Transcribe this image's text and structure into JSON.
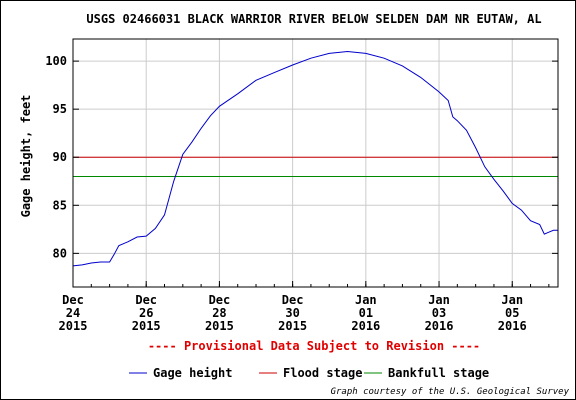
{
  "chart_data": {
    "type": "line",
    "title": "USGS 02466031 BLACK WARRIOR RIVER BELOW SELDEN DAM NR EUTAW, AL",
    "ylabel": "Gage height, feet",
    "ylim": [
      76.5,
      102.3
    ],
    "xlim": [
      "2015-12-24T00:00",
      "2016-01-06T06:00"
    ],
    "yticks": [
      80,
      85,
      90,
      95,
      100
    ],
    "xticks": [
      {
        "date": "2015-12-24",
        "lines": [
          "Dec",
          "24",
          "2015"
        ]
      },
      {
        "date": "2015-12-26",
        "lines": [
          "Dec",
          "26",
          "2015"
        ]
      },
      {
        "date": "2015-12-28",
        "lines": [
          "Dec",
          "28",
          "2015"
        ]
      },
      {
        "date": "2015-12-30",
        "lines": [
          "Dec",
          "30",
          "2015"
        ]
      },
      {
        "date": "2016-01-01",
        "lines": [
          "Jan",
          "01",
          "2016"
        ]
      },
      {
        "date": "2016-01-03",
        "lines": [
          "Jan",
          "03",
          "2016"
        ]
      },
      {
        "date": "2016-01-05",
        "lines": [
          "Jan",
          "05",
          "2016"
        ]
      }
    ],
    "grid": true,
    "series": [
      {
        "name": "Gage height",
        "color": "#0000cc",
        "points": [
          [
            "2015-12-24T00:00",
            78.7
          ],
          [
            "2015-12-24T06:00",
            78.8
          ],
          [
            "2015-12-24T12:00",
            79.0
          ],
          [
            "2015-12-24T18:00",
            79.1
          ],
          [
            "2015-12-25T00:00",
            79.1
          ],
          [
            "2015-12-25T03:00",
            79.9
          ],
          [
            "2015-12-25T06:00",
            80.8
          ],
          [
            "2015-12-25T12:00",
            81.2
          ],
          [
            "2015-12-25T18:00",
            81.7
          ],
          [
            "2015-12-26T00:00",
            81.8
          ],
          [
            "2015-12-26T06:00",
            82.6
          ],
          [
            "2015-12-26T12:00",
            84.0
          ],
          [
            "2015-12-26T18:00",
            87.5
          ],
          [
            "2015-12-27T00:00",
            90.3
          ],
          [
            "2015-12-27T06:00",
            91.6
          ],
          [
            "2015-12-27T12:00",
            93.0
          ],
          [
            "2015-12-27T18:00",
            94.3
          ],
          [
            "2015-12-28T00:00",
            95.3
          ],
          [
            "2015-12-28T12:00",
            96.6
          ],
          [
            "2015-12-29T00:00",
            98.0
          ],
          [
            "2015-12-29T12:00",
            98.8
          ],
          [
            "2015-12-30T00:00",
            99.6
          ],
          [
            "2015-12-30T12:00",
            100.3
          ],
          [
            "2015-12-31T00:00",
            100.8
          ],
          [
            "2015-12-31T12:00",
            101.0
          ],
          [
            "2016-01-01T00:00",
            100.8
          ],
          [
            "2016-01-01T12:00",
            100.3
          ],
          [
            "2016-01-02T00:00",
            99.5
          ],
          [
            "2016-01-02T12:00",
            98.3
          ],
          [
            "2016-01-03T00:00",
            96.8
          ],
          [
            "2016-01-03T06:00",
            95.9
          ],
          [
            "2016-01-03T09:00",
            94.2
          ],
          [
            "2016-01-03T12:00",
            93.8
          ],
          [
            "2016-01-03T18:00",
            92.8
          ],
          [
            "2016-01-04T00:00",
            91.0
          ],
          [
            "2016-01-04T06:00",
            89.0
          ],
          [
            "2016-01-04T12:00",
            87.7
          ],
          [
            "2016-01-04T18:00",
            86.5
          ],
          [
            "2016-01-05T00:00",
            85.2
          ],
          [
            "2016-01-05T06:00",
            84.5
          ],
          [
            "2016-01-05T12:00",
            83.4
          ],
          [
            "2016-01-05T18:00",
            83.0
          ],
          [
            "2016-01-05T21:00",
            82.0
          ],
          [
            "2016-01-06T00:00",
            82.2
          ],
          [
            "2016-01-06T03:00",
            82.4
          ],
          [
            "2016-01-06T06:00",
            82.4
          ]
        ]
      }
    ],
    "reference_lines": [
      {
        "name": "Flood stage",
        "value": 90,
        "color": "#cc0000"
      },
      {
        "name": "Bankfull stage",
        "value": 88,
        "color": "#008800"
      }
    ],
    "legend": [
      {
        "label": "Gage height",
        "color": "#0000cc"
      },
      {
        "label": "Flood stage",
        "color": "#cc0000"
      },
      {
        "label": "Bankfull stage",
        "color": "#008800"
      }
    ],
    "legend_position": "bottom",
    "provisional_note": "---- Provisional Data Subject to Revision ----",
    "credit": "Graph courtesy of the U.S. Geological Survey"
  }
}
